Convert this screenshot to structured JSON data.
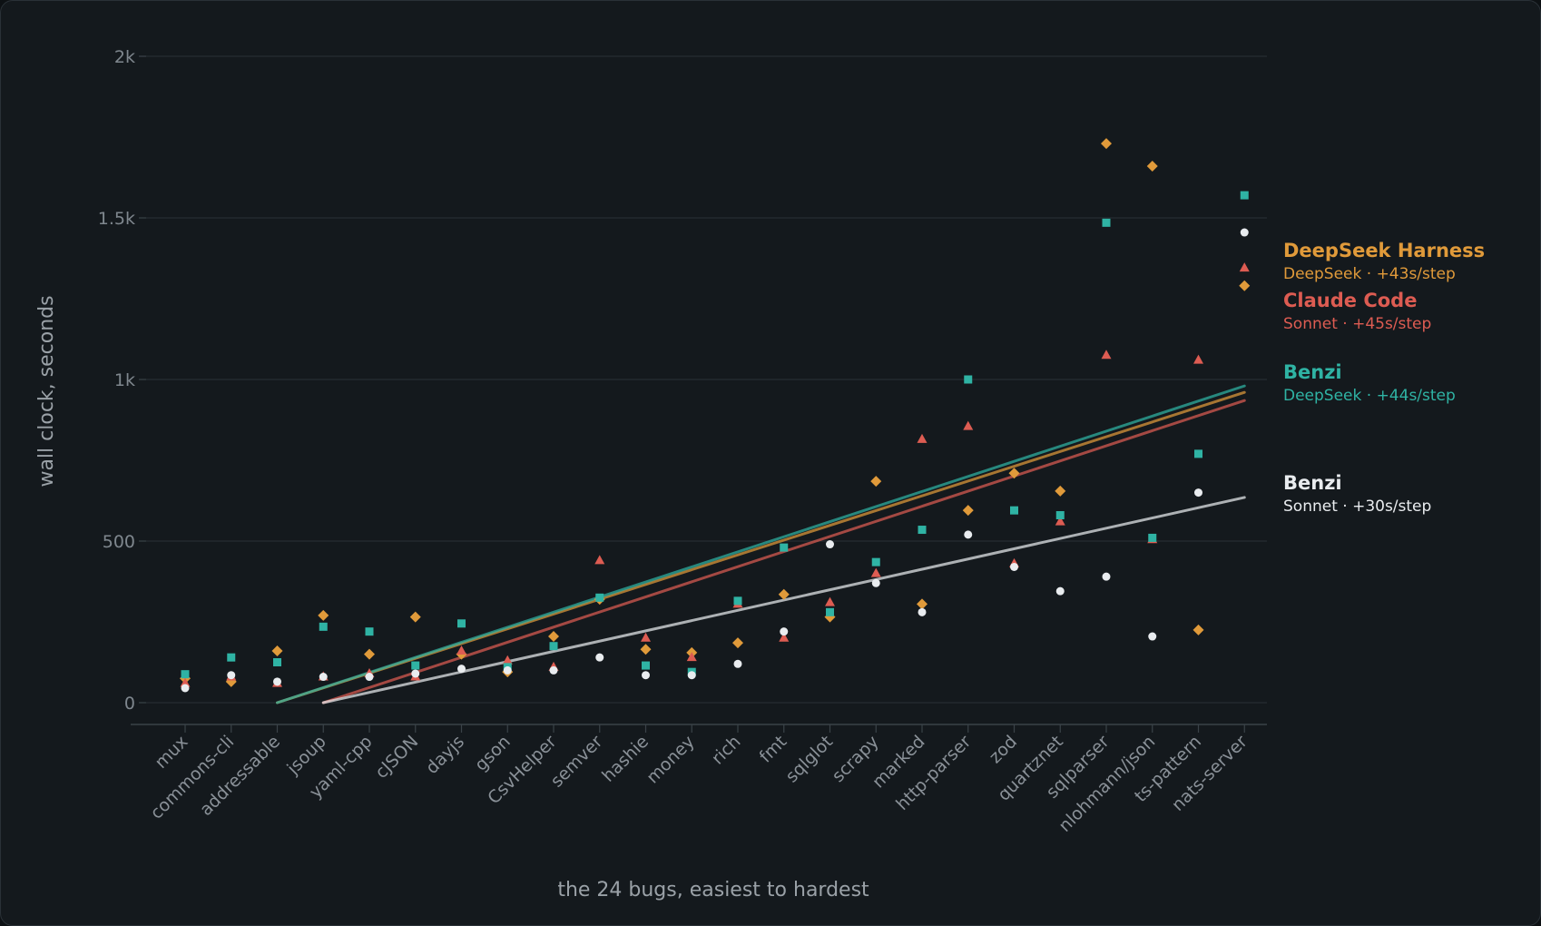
{
  "chart_data": {
    "type": "scatter",
    "title": "",
    "xlabel": "the 24 bugs, easiest to hardest",
    "ylabel": "wall clock, seconds",
    "ylim": [
      -60,
      2040
    ],
    "yticks": [
      {
        "value": 0,
        "label": "0"
      },
      {
        "value": 500,
        "label": "500"
      },
      {
        "value": 1000,
        "label": "1k"
      },
      {
        "value": 1500,
        "label": "1.5k"
      },
      {
        "value": 2000,
        "label": "2k"
      }
    ],
    "grid": true,
    "categories": [
      "mux",
      "commons-cli",
      "addressable",
      "jsoup",
      "yaml-cpp",
      "cJSON",
      "dayjs",
      "gson",
      "CsvHelper",
      "semver",
      "hashie",
      "money",
      "rich",
      "fmt",
      "sqlglot",
      "scrapy",
      "marked",
      "http-parser",
      "zod",
      "quartznet",
      "sqlparser",
      "nlohmann/json",
      "ts-pattern",
      "nats-server"
    ],
    "series": [
      {
        "name": "DeepSeek Harness",
        "subtitle": "DeepSeek · +43s/step",
        "color": "#e09a3a",
        "marker": "diamond",
        "values": [
          75,
          65,
          160,
          270,
          150,
          265,
          150,
          95,
          205,
          320,
          165,
          155,
          185,
          335,
          265,
          685,
          305,
          595,
          710,
          655,
          1730,
          1660,
          225,
          1290
        ],
        "trend": [
          [
            2,
            0
          ],
          [
            23,
            960
          ]
        ]
      },
      {
        "name": "Claude Code",
        "subtitle": "Sonnet · +45s/step",
        "color": "#dd5c52",
        "marker": "triangle",
        "values": [
          60,
          80,
          60,
          80,
          90,
          80,
          160,
          130,
          110,
          440,
          200,
          140,
          305,
          200,
          310,
          400,
          815,
          855,
          430,
          560,
          1075,
          505,
          1060,
          1345
        ],
        "trend": [
          [
            3,
            0
          ],
          [
            23,
            935
          ]
        ]
      },
      {
        "name": "Benzi",
        "subtitle": "DeepSeek · +44s/step",
        "color": "#2fb3a4",
        "marker": "square",
        "values": [
          88,
          140,
          125,
          235,
          220,
          115,
          245,
          110,
          175,
          325,
          115,
          95,
          315,
          480,
          280,
          435,
          535,
          1000,
          595,
          580,
          1485,
          510,
          770,
          1570
        ],
        "trend": [
          [
            2,
            0
          ],
          [
            23,
            980
          ]
        ]
      },
      {
        "name": "Benzi",
        "subtitle": "Sonnet · +30s/step",
        "color": "#e9ecef",
        "marker": "circle",
        "values": [
          45,
          85,
          65,
          80,
          80,
          90,
          105,
          100,
          100,
          140,
          85,
          85,
          120,
          220,
          490,
          370,
          280,
          520,
          420,
          345,
          390,
          205,
          650,
          1455
        ],
        "trend": [
          [
            3,
            0
          ],
          [
            23,
            635
          ]
        ]
      }
    ]
  }
}
